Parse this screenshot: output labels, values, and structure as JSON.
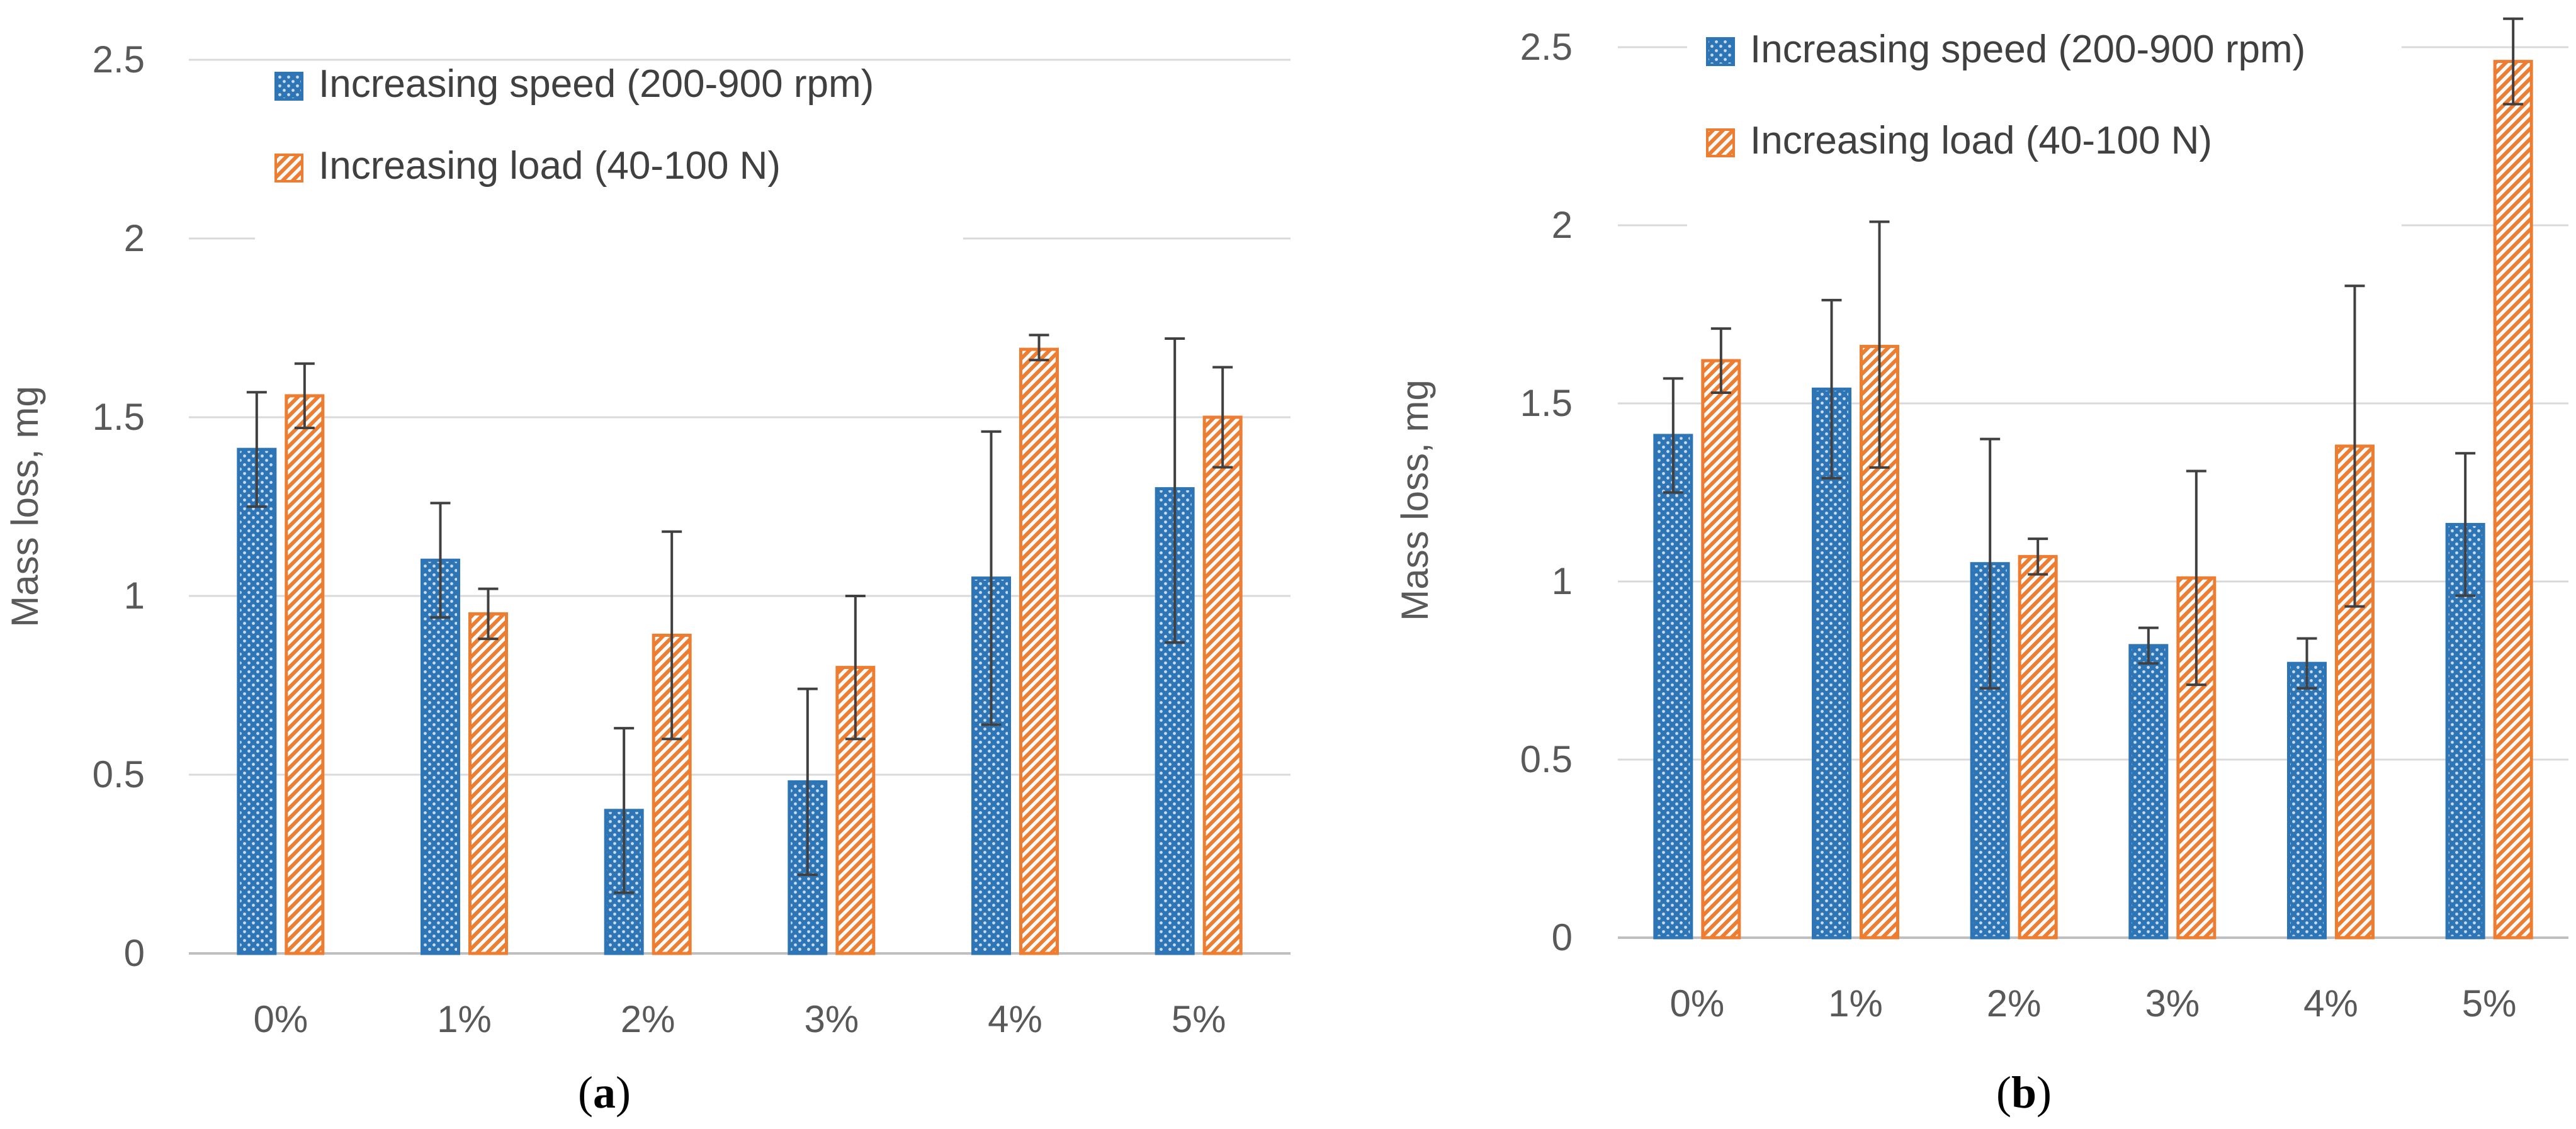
{
  "chart_data": [
    {
      "type": "bar",
      "caption": "a",
      "categories": [
        "0%",
        "1%",
        "2%",
        "3%",
        "4%",
        "5%"
      ],
      "ylabel": "Mass loss, mg",
      "xlabel": "",
      "ylim": [
        0,
        2.5
      ],
      "yticks": [
        0,
        0.5,
        1,
        1.5,
        2,
        2.5
      ],
      "ytick_labels": [
        "0",
        "0.5",
        "1",
        "1.5",
        "2",
        "2.5"
      ],
      "grid": true,
      "legend_position": "top-center",
      "series": [
        {
          "name": "Increasing speed (200-900 rpm)",
          "color": "#2E75B6",
          "pattern": "dots",
          "values": [
            1.41,
            1.1,
            0.4,
            0.48,
            1.05,
            1.3
          ],
          "err_high": [
            1.57,
            1.26,
            0.63,
            0.74,
            1.46,
            1.72
          ],
          "err_low": [
            1.25,
            0.94,
            0.17,
            0.22,
            0.64,
            0.87
          ]
        },
        {
          "name": "Increasing load (40-100 N)",
          "color": "#ED7D31",
          "pattern": "diagonal",
          "values": [
            1.56,
            0.95,
            0.89,
            0.8,
            1.69,
            1.5
          ],
          "err_high": [
            1.65,
            1.02,
            1.18,
            1.0,
            1.73,
            1.64
          ],
          "err_low": [
            1.47,
            0.88,
            0.6,
            0.6,
            1.66,
            1.36
          ]
        }
      ]
    },
    {
      "type": "bar",
      "caption": "b",
      "categories": [
        "0%",
        "1%",
        "2%",
        "3%",
        "4%",
        "5%"
      ],
      "ylabel": "Mass loss, mg",
      "xlabel": "",
      "ylim": [
        0,
        2.5
      ],
      "yticks": [
        0,
        0.5,
        1,
        1.5,
        2,
        2.5
      ],
      "ytick_labels": [
        "0",
        "0.5",
        "1",
        "1.5",
        "2",
        "2.5"
      ],
      "grid": true,
      "legend_position": "top-center",
      "series": [
        {
          "name": "Increasing speed (200-900 rpm)",
          "color": "#2E75B6",
          "pattern": "dots",
          "values": [
            1.41,
            1.54,
            1.05,
            0.82,
            0.77,
            1.16
          ],
          "err_high": [
            1.57,
            1.79,
            1.4,
            0.87,
            0.84,
            1.36
          ],
          "err_low": [
            1.25,
            1.29,
            0.7,
            0.77,
            0.7,
            0.96
          ]
        },
        {
          "name": "Increasing load (40-100 N)",
          "color": "#ED7D31",
          "pattern": "diagonal",
          "values": [
            1.62,
            1.66,
            1.07,
            1.01,
            1.38,
            2.46
          ],
          "err_high": [
            1.71,
            2.01,
            1.12,
            1.31,
            1.83,
            2.58
          ],
          "err_low": [
            1.53,
            1.32,
            1.02,
            0.71,
            0.93,
            2.34
          ]
        }
      ]
    }
  ]
}
